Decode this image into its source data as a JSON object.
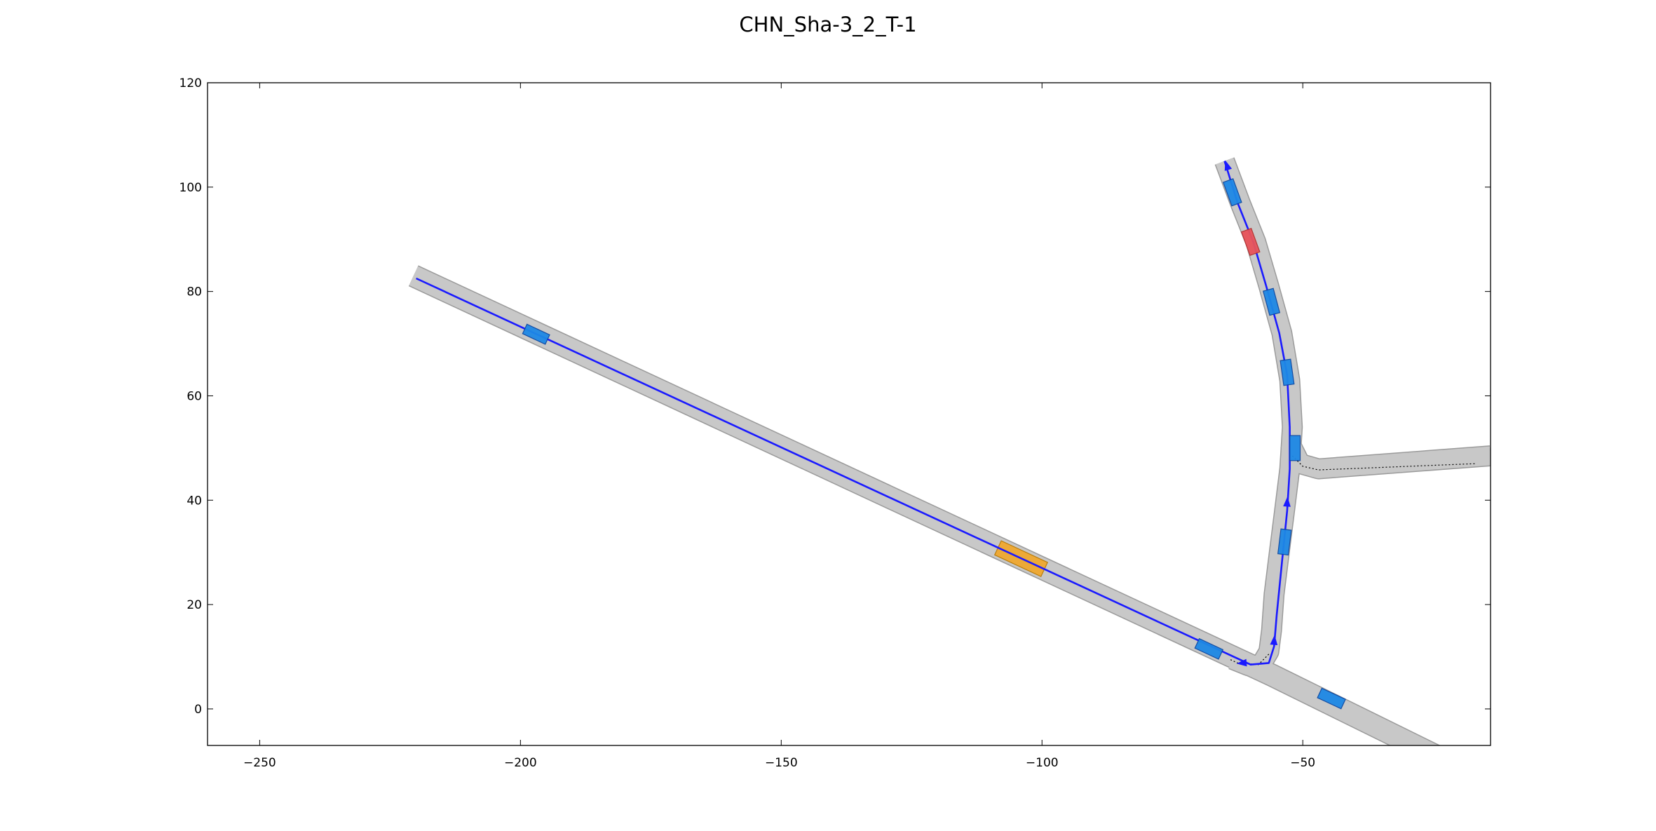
{
  "title": "CHN_Sha-3_2_T-1",
  "axes": {
    "xlim": [
      -260,
      -14
    ],
    "ylim": [
      -7,
      120
    ],
    "x_ticks": [
      {
        "value": -250,
        "label": "−250"
      },
      {
        "value": -200,
        "label": "−200"
      },
      {
        "value": -150,
        "label": "−150"
      },
      {
        "value": -100,
        "label": "−100"
      },
      {
        "value": -50,
        "label": "−50"
      }
    ],
    "y_ticks": [
      {
        "value": 0,
        "label": "0"
      },
      {
        "value": 20,
        "label": "20"
      },
      {
        "value": 40,
        "label": "40"
      },
      {
        "value": 60,
        "label": "60"
      },
      {
        "value": 80,
        "label": "80"
      },
      {
        "value": 100,
        "label": "100"
      },
      {
        "value": 120,
        "label": "120"
      }
    ],
    "grid": false
  },
  "colors": {
    "road_fill": "#c8c8c8",
    "road_edge": "#9a9a9a",
    "planned_path": "#1a1aff",
    "vehicle_other": "#1e88e5",
    "vehicle_other_edge": "#0d47a1",
    "vehicle_ego": "#e8545a",
    "vehicle_ego_edge": "#b03030",
    "goal_region": "#f0a830",
    "goal_region_edge": "#b87800",
    "lane_marking": "#000000"
  },
  "map": {
    "roads": [
      {
        "id": "main-diagonal",
        "width": 4.0,
        "centerline": [
          [
            -220.5,
            83.0
          ],
          [
            -56.0,
            6.5
          ],
          [
            -20.0,
            -11.2
          ]
        ]
      },
      {
        "id": "north-branch",
        "width": 3.6,
        "centerline": [
          [
            -65.0,
            105.0
          ],
          [
            -62.0,
            97.0
          ],
          [
            -59.0,
            89.5
          ],
          [
            -56.5,
            81.0
          ],
          [
            -54.0,
            72.0
          ],
          [
            -52.5,
            63.0
          ],
          [
            -52.0,
            54.0
          ],
          [
            -52.5,
            46.0
          ],
          [
            -53.5,
            38.0
          ],
          [
            -54.5,
            30.0
          ],
          [
            -55.5,
            22.0
          ],
          [
            -56.0,
            15.0
          ],
          [
            -56.5,
            11.0
          ],
          [
            -58.0,
            8.5
          ],
          [
            -60.5,
            8.3
          ],
          [
            -63.5,
            9.5
          ]
        ]
      },
      {
        "id": "east-road",
        "width": 3.6,
        "centerline": [
          [
            -52.5,
            51.0
          ],
          [
            -50.5,
            47.0
          ],
          [
            -47.0,
            46.0
          ],
          [
            -14.0,
            48.5
          ]
        ]
      }
    ],
    "lane_markings": [
      {
        "centerline": [
          [
            -52.0,
            48.5
          ],
          [
            -50.0,
            46.5
          ],
          [
            -47.0,
            45.8
          ],
          [
            -17.0,
            47.0
          ]
        ]
      },
      {
        "centerline": [
          [
            -56.5,
            10.5
          ],
          [
            -58.5,
            8.5
          ],
          [
            -62.5,
            8.8
          ],
          [
            -64.0,
            9.5
          ]
        ]
      }
    ],
    "planned_path": {
      "points": [
        [
          -220.0,
          82.5
        ],
        [
          -60.0,
          8.5
        ],
        [
          -56.5,
          8.8
        ],
        [
          -55.5,
          12.0
        ],
        [
          -55.0,
          18.0
        ],
        [
          -54.0,
          28.0
        ],
        [
          -53.0,
          38.0
        ],
        [
          -52.5,
          46.0
        ],
        [
          -52.5,
          54.0
        ],
        [
          -53.0,
          64.0
        ],
        [
          -54.5,
          72.0
        ],
        [
          -57.0,
          81.0
        ],
        [
          -59.5,
          89.5
        ],
        [
          -62.5,
          97.0
        ],
        [
          -65.0,
          105.0
        ]
      ],
      "arrows": [
        {
          "x": -61.5,
          "y": 8.8,
          "dir": -1
        },
        {
          "x": -55.5,
          "y": 13.0,
          "dir": 1
        },
        {
          "x": -53.0,
          "y": 39.5,
          "dir": 1
        },
        {
          "x": -64.5,
          "y": 104.0,
          "dir": 1
        }
      ]
    },
    "vehicles": [
      {
        "role": "other",
        "x": -197.0,
        "y": 71.8,
        "length": 4.8,
        "width": 2.0,
        "heading": -25.0
      },
      {
        "role": "other",
        "x": -68.0,
        "y": 11.5,
        "length": 5.0,
        "width": 2.0,
        "heading": -25.0
      },
      {
        "role": "other",
        "x": -44.5,
        "y": 2.0,
        "length": 5.0,
        "width": 2.0,
        "heading": -25.0
      },
      {
        "role": "other",
        "x": -63.5,
        "y": 99.0,
        "length": 4.8,
        "width": 2.0,
        "heading": -70.0
      },
      {
        "role": "ego",
        "x": -60.0,
        "y": 89.5,
        "length": 4.8,
        "width": 2.0,
        "heading": -70.0
      },
      {
        "role": "other",
        "x": -56.0,
        "y": 78.0,
        "length": 4.8,
        "width": 2.0,
        "heading": -75.0
      },
      {
        "role": "other",
        "x": -53.0,
        "y": 64.5,
        "length": 4.8,
        "width": 2.0,
        "heading": -82.0
      },
      {
        "role": "other",
        "x": -51.5,
        "y": 50.0,
        "length": 4.8,
        "width": 2.0,
        "heading": -90.0
      },
      {
        "role": "other",
        "x": -53.5,
        "y": 32.0,
        "length": 4.8,
        "width": 2.0,
        "heading": 83.0
      },
      {
        "role": "goal",
        "x": -104.0,
        "y": 28.8,
        "length": 9.8,
        "width": 3.0,
        "heading": -25.0
      }
    ]
  }
}
